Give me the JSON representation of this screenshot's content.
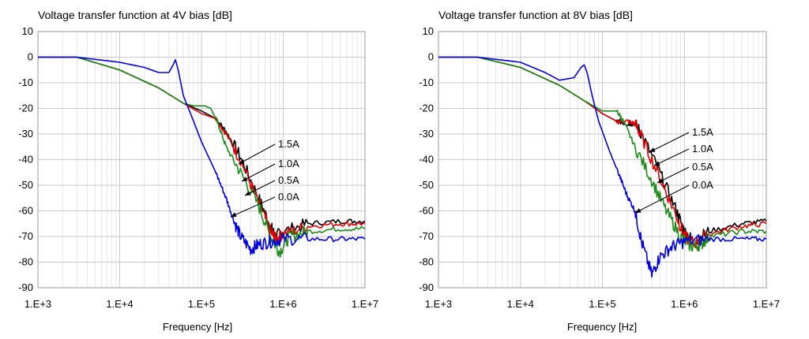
{
  "chart_data": [
    {
      "type": "line",
      "title": "Voltage transfer function at 4V bias [dB]",
      "xlabel": "Frequency [Hz]",
      "ylabel": "",
      "xscale": "log",
      "xlim": [
        1000,
        10000000
      ],
      "ylim": [
        -90,
        10
      ],
      "xticks": [
        1000,
        10000,
        100000,
        1000000,
        10000000
      ],
      "xtick_labels": [
        "1.E+3",
        "1.E+4",
        "1.E+5",
        "1.E+6",
        "1.E+7"
      ],
      "yticks": [
        10,
        0,
        -10,
        -20,
        -30,
        -40,
        -50,
        -60,
        -70,
        -80,
        -90
      ],
      "ytick_labels": [
        "10",
        "0",
        "-10",
        "-20",
        "-30",
        "-40",
        "-50",
        "-60",
        "-70",
        "-80",
        "-90"
      ],
      "grid": true,
      "series": [
        {
          "name": "1.5A",
          "color": "#000000",
          "x": [
            1000,
            3000,
            10000,
            30000,
            60000,
            100000,
            150000,
            200000,
            300000,
            500000,
            700000,
            800000,
            1000000,
            2000000,
            5000000,
            10000000
          ],
          "y": [
            0,
            0,
            -5,
            -12,
            -18,
            -21,
            -24,
            -29,
            -39,
            -55,
            -66,
            -70,
            -68,
            -65,
            -64,
            -64
          ]
        },
        {
          "name": "1.0A",
          "color": "#e00000",
          "x": [
            1000,
            3000,
            10000,
            30000,
            60000,
            100000,
            150000,
            200000,
            300000,
            500000,
            700000,
            800000,
            1000000,
            2000000,
            5000000,
            10000000
          ],
          "y": [
            0,
            0,
            -5,
            -12,
            -18,
            -22,
            -24,
            -30,
            -40,
            -57,
            -68,
            -71,
            -69,
            -66,
            -65,
            -65
          ]
        },
        {
          "name": "0.5A",
          "color": "#1a8c1a",
          "x": [
            1000,
            3000,
            10000,
            30000,
            60000,
            80000,
            110000,
            130000,
            160000,
            200000,
            300000,
            500000,
            700000,
            900000,
            1200000,
            2000000,
            5000000,
            10000000
          ],
          "y": [
            0,
            0,
            -5,
            -12,
            -18,
            -19,
            -19,
            -20,
            -26,
            -35,
            -45,
            -58,
            -70,
            -76,
            -70,
            -68,
            -67,
            -67
          ]
        },
        {
          "name": "0.0A",
          "color": "#0000e0",
          "x": [
            1000,
            3000,
            10000,
            20000,
            30000,
            40000,
            45000,
            48000,
            52000,
            60000,
            80000,
            100000,
            150000,
            200000,
            250000,
            300000,
            400000,
            500000,
            700000,
            1000000,
            2000000,
            5000000,
            10000000
          ],
          "y": [
            0,
            0,
            -2,
            -4,
            -6,
            -6,
            -3,
            -1,
            -5,
            -15,
            -25,
            -33,
            -45,
            -55,
            -64,
            -70,
            -75,
            -73,
            -72,
            -71,
            -71,
            -71,
            -71
          ]
        }
      ],
      "annotations": [
        "1.5A",
        "1.0A",
        "0.5A",
        "0.0A"
      ]
    },
    {
      "type": "line",
      "title": "Voltage transfer function at 8V bias [dB]",
      "xlabel": "Frequency [Hz]",
      "ylabel": "",
      "xscale": "log",
      "xlim": [
        1000,
        10000000
      ],
      "ylim": [
        -90,
        10
      ],
      "xticks": [
        1000,
        10000,
        100000,
        1000000,
        10000000
      ],
      "xtick_labels": [
        "1.E+3",
        "1.E+4",
        "1.E+5",
        "1.E+6",
        "1.E+7"
      ],
      "yticks": [
        10,
        0,
        -10,
        -20,
        -30,
        -40,
        -50,
        -60,
        -70,
        -80,
        -90
      ],
      "ytick_labels": [
        "10",
        "0",
        "-10",
        "-20",
        "-30",
        "-40",
        "-50",
        "-60",
        "-70",
        "-80",
        "-90"
      ],
      "grid": true,
      "series": [
        {
          "name": "1.5A",
          "color": "#000000",
          "x": [
            1000,
            3000,
            10000,
            30000,
            60000,
            100000,
            150000,
            200000,
            250000,
            300000,
            500000,
            800000,
            1000000,
            1300000,
            2000000,
            5000000,
            10000000
          ],
          "y": [
            0,
            0,
            -4,
            -11,
            -17,
            -22,
            -25,
            -26,
            -26,
            -30,
            -45,
            -60,
            -68,
            -72,
            -68,
            -65,
            -64
          ]
        },
        {
          "name": "1.0A",
          "color": "#e00000",
          "x": [
            1000,
            3000,
            10000,
            30000,
            60000,
            100000,
            150000,
            200000,
            250000,
            300000,
            500000,
            800000,
            1000000,
            1300000,
            2000000,
            5000000,
            10000000
          ],
          "y": [
            0,
            0,
            -4,
            -11,
            -17,
            -22,
            -25,
            -25,
            -26,
            -31,
            -47,
            -62,
            -70,
            -73,
            -69,
            -66,
            -65
          ]
        },
        {
          "name": "0.5A",
          "color": "#1a8c1a",
          "x": [
            1000,
            3000,
            10000,
            30000,
            60000,
            100000,
            130000,
            150000,
            180000,
            250000,
            400000,
            600000,
            900000,
            1200000,
            1600000,
            2000000,
            5000000,
            10000000
          ],
          "y": [
            0,
            0,
            -4,
            -11,
            -17,
            -21,
            -21,
            -21,
            -25,
            -35,
            -48,
            -60,
            -70,
            -74,
            -73,
            -70,
            -68,
            -68
          ]
        },
        {
          "name": "0.0A",
          "color": "#0000e0",
          "x": [
            1000,
            3000,
            10000,
            20000,
            30000,
            45000,
            55000,
            60000,
            65000,
            75000,
            90000,
            120000,
            160000,
            200000,
            250000,
            300000,
            400000,
            500000,
            700000,
            1000000,
            2000000,
            5000000,
            10000000
          ],
          "y": [
            0,
            0,
            -2,
            -6,
            -9,
            -8,
            -4,
            -3,
            -6,
            -15,
            -25,
            -36,
            -46,
            -54,
            -60,
            -72,
            -85,
            -78,
            -74,
            -72,
            -71,
            -71,
            -71
          ]
        }
      ],
      "annotations": [
        "1.5A",
        "1.0A",
        "0.5A",
        "0.0A"
      ]
    }
  ]
}
